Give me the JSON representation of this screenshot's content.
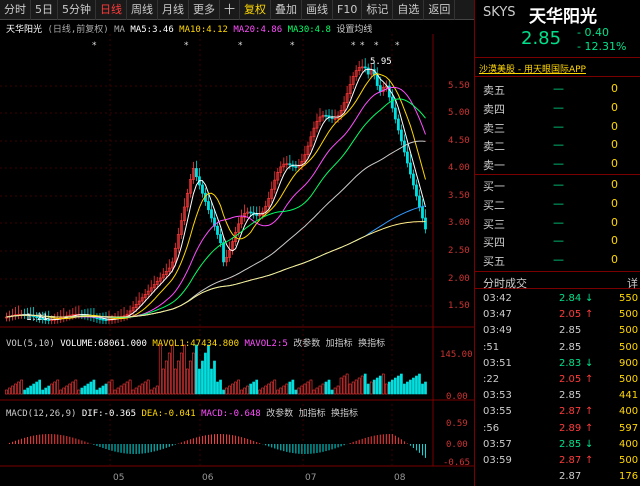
{
  "toolbar": {
    "items": [
      "分时",
      "5日",
      "5分钟",
      "日线",
      "周线",
      "月线",
      "更多",
      "十",
      "复权",
      "叠加",
      "画线",
      "F10",
      "标记",
      "自选",
      "返回"
    ],
    "active_index": 3,
    "restore_index": 8
  },
  "main_legend": {
    "stock": "天华阳光",
    "mode": "(日线,前复权)",
    "ma_label": "MA",
    "ma5": "MA5:3.46",
    "ma10": "MA10:4.12",
    "ma20": "MA20:4.86",
    "ma30": "MA30:4.8",
    "settings": "设置均线"
  },
  "volume_legend": {
    "name": "VOL(5,10)",
    "volume": "VOLUME:68061.000",
    "mavol1": "MAVOL1:47434.800",
    "mavol2": "MAVOL2:5",
    "params": "改参数",
    "add": "加指标",
    "switch": "换指标"
  },
  "macd_legend": {
    "name": "MACD(12,26,9)",
    "dif": "DIF:-0.365",
    "dea": "DEA:-0.041",
    "macd": "MACD:-0.648",
    "params": "改参数",
    "add": "加指标",
    "switch": "换指标"
  },
  "price_axis": [
    "5.50",
    "5.00",
    "4.50",
    "4.00",
    "3.50",
    "3.00",
    "2.50",
    "2.00",
    "1.50"
  ],
  "high_label": "5.95",
  "low_label": "1.21",
  "volume_axis": [
    "145.00",
    "0.00"
  ],
  "macd_axis": [
    "0.59",
    "0.00",
    "-0.65"
  ],
  "x_labels": [
    "05",
    "06",
    "07",
    "08"
  ],
  "quote": {
    "code": "SKYS",
    "name": "天华阳光",
    "price": "2.85",
    "change": "- 0.40",
    "change_pct": "- 12.31%",
    "link": "沙漠美股 - 用天眼国际APP"
  },
  "orderbook": [
    {
      "label": "卖五",
      "price": "—",
      "vol": "0"
    },
    {
      "label": "卖四",
      "price": "—",
      "vol": "0"
    },
    {
      "label": "卖三",
      "price": "—",
      "vol": "0"
    },
    {
      "label": "卖二",
      "price": "—",
      "vol": "0"
    },
    {
      "label": "卖一",
      "price": "—",
      "vol": "0"
    },
    {
      "label": "买一",
      "price": "—",
      "vol": "0"
    },
    {
      "label": "买二",
      "price": "—",
      "vol": "0"
    },
    {
      "label": "买三",
      "price": "—",
      "vol": "0"
    },
    {
      "label": "买四",
      "price": "—",
      "vol": "0"
    },
    {
      "label": "买五",
      "price": "—",
      "vol": "0"
    }
  ],
  "trades_header": {
    "title": "分时成交",
    "right": "详"
  },
  "trades": [
    {
      "time": "03:42",
      "price": "2.84",
      "dir": "down",
      "vol": "550"
    },
    {
      "time": "03:47",
      "price": "2.05",
      "dir": "up",
      "vol": "500"
    },
    {
      "time": "03:49",
      "price": "2.85",
      "dir": "",
      "vol": "500"
    },
    {
      "time": ":51",
      "price": "2.85",
      "dir": "",
      "vol": "500"
    },
    {
      "time": "03:51",
      "price": "2.83",
      "dir": "down",
      "vol": "900"
    },
    {
      "time": ":22",
      "price": "2.05",
      "dir": "up",
      "vol": "500"
    },
    {
      "time": "03:53",
      "price": "2.85",
      "dir": "",
      "vol": "441"
    },
    {
      "time": "03:55",
      "price": "2.87",
      "dir": "up",
      "vol": "400"
    },
    {
      "time": ":56",
      "price": "2.89",
      "dir": "up",
      "vol": "597"
    },
    {
      "time": "03:57",
      "price": "2.85",
      "dir": "down",
      "vol": "400"
    },
    {
      "time": "03:59",
      "price": "2.87",
      "dir": "up",
      "vol": "500"
    },
    {
      "time": "",
      "price": "2.87",
      "dir": "",
      "vol": "176"
    }
  ],
  "colors": {
    "up": "#ff3b3b",
    "down": "#00e0e0",
    "ma5": "#ffffff",
    "ma10": "#ffd700",
    "ma20": "#ff4dff",
    "ma30": "#00ff66",
    "ma60": "#cccccc",
    "ma120": "#3399ff",
    "ma250": "#ffee88"
  }
}
